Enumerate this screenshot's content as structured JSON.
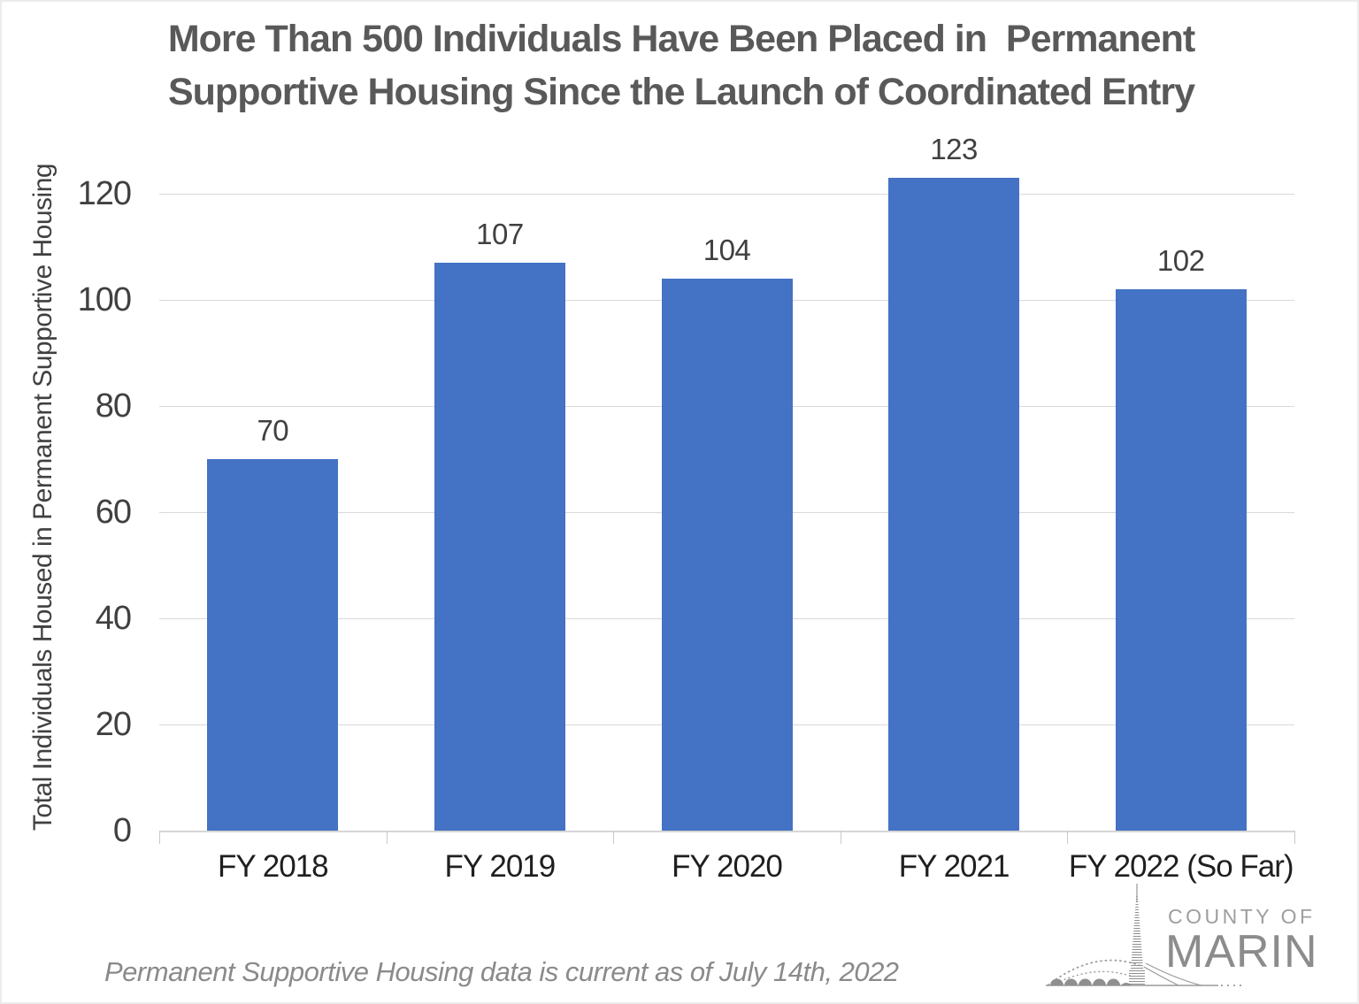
{
  "title": {
    "line1": "More Than 500 Individuals Have Been Placed in  Permanent",
    "line2": "Supportive Housing Since the Launch of Coordinated Entry"
  },
  "chart_data": {
    "type": "bar",
    "title": "More Than 500 Individuals Have Been Placed in  Permanent Supportive Housing Since the Launch of Coordinated Entry",
    "categories": [
      "FY 2018",
      "FY 2019",
      "FY 2020",
      "FY 2021",
      "FY 2022 (So Far)"
    ],
    "values": [
      70,
      107,
      104,
      123,
      102
    ],
    "data_labels": [
      "70",
      "107",
      "104",
      "123",
      "102"
    ],
    "xlabel": "",
    "ylabel": "Total Individuals Housed in Permanent Supportive Housing",
    "ylim": [
      0,
      130
    ],
    "yticks": [
      0,
      20,
      40,
      60,
      80,
      100,
      120
    ],
    "grid": true,
    "legend": false,
    "bar_color": "#4472C4"
  },
  "footer": {
    "note": "Permanent Supportive Housing data is current as of July 14th, 2022"
  },
  "logo": {
    "top_text": "COUNTY OF",
    "bottom_text": "MARIN"
  },
  "colors": {
    "bar": "#4472C4",
    "title_text": "#595959",
    "y_axis_text": "#404040",
    "x_axis_text": "#1f1f1f",
    "gridline": "#d9d9d9",
    "footer_text": "#8a8a8a",
    "logo_text": "#8c8c8c"
  }
}
